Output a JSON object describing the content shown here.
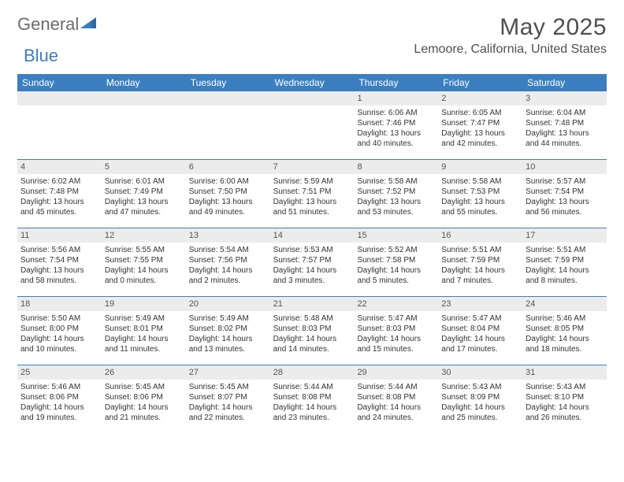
{
  "logo": {
    "word1": "General",
    "word2": "Blue"
  },
  "title": "May 2025",
  "location": "Lemoore, California, United States",
  "colors": {
    "header_bg": "#3b7fc0",
    "header_text": "#ffffff",
    "daynum_bg": "#ececec",
    "body_text": "#333333",
    "title_text": "#4f4f4f",
    "row_border": "#3b7fc0"
  },
  "type": "calendar",
  "day_names": [
    "Sunday",
    "Monday",
    "Tuesday",
    "Wednesday",
    "Thursday",
    "Friday",
    "Saturday"
  ],
  "weeks": [
    [
      null,
      null,
      null,
      null,
      {
        "n": "1",
        "sr": "Sunrise: 6:06 AM",
        "ss": "Sunset: 7:46 PM",
        "d1": "Daylight: 13 hours",
        "d2": "and 40 minutes."
      },
      {
        "n": "2",
        "sr": "Sunrise: 6:05 AM",
        "ss": "Sunset: 7:47 PM",
        "d1": "Daylight: 13 hours",
        "d2": "and 42 minutes."
      },
      {
        "n": "3",
        "sr": "Sunrise: 6:04 AM",
        "ss": "Sunset: 7:48 PM",
        "d1": "Daylight: 13 hours",
        "d2": "and 44 minutes."
      }
    ],
    [
      {
        "n": "4",
        "sr": "Sunrise: 6:02 AM",
        "ss": "Sunset: 7:48 PM",
        "d1": "Daylight: 13 hours",
        "d2": "and 45 minutes."
      },
      {
        "n": "5",
        "sr": "Sunrise: 6:01 AM",
        "ss": "Sunset: 7:49 PM",
        "d1": "Daylight: 13 hours",
        "d2": "and 47 minutes."
      },
      {
        "n": "6",
        "sr": "Sunrise: 6:00 AM",
        "ss": "Sunset: 7:50 PM",
        "d1": "Daylight: 13 hours",
        "d2": "and 49 minutes."
      },
      {
        "n": "7",
        "sr": "Sunrise: 5:59 AM",
        "ss": "Sunset: 7:51 PM",
        "d1": "Daylight: 13 hours",
        "d2": "and 51 minutes."
      },
      {
        "n": "8",
        "sr": "Sunrise: 5:58 AM",
        "ss": "Sunset: 7:52 PM",
        "d1": "Daylight: 13 hours",
        "d2": "and 53 minutes."
      },
      {
        "n": "9",
        "sr": "Sunrise: 5:58 AM",
        "ss": "Sunset: 7:53 PM",
        "d1": "Daylight: 13 hours",
        "d2": "and 55 minutes."
      },
      {
        "n": "10",
        "sr": "Sunrise: 5:57 AM",
        "ss": "Sunset: 7:54 PM",
        "d1": "Daylight: 13 hours",
        "d2": "and 56 minutes."
      }
    ],
    [
      {
        "n": "11",
        "sr": "Sunrise: 5:56 AM",
        "ss": "Sunset: 7:54 PM",
        "d1": "Daylight: 13 hours",
        "d2": "and 58 minutes."
      },
      {
        "n": "12",
        "sr": "Sunrise: 5:55 AM",
        "ss": "Sunset: 7:55 PM",
        "d1": "Daylight: 14 hours",
        "d2": "and 0 minutes."
      },
      {
        "n": "13",
        "sr": "Sunrise: 5:54 AM",
        "ss": "Sunset: 7:56 PM",
        "d1": "Daylight: 14 hours",
        "d2": "and 2 minutes."
      },
      {
        "n": "14",
        "sr": "Sunrise: 5:53 AM",
        "ss": "Sunset: 7:57 PM",
        "d1": "Daylight: 14 hours",
        "d2": "and 3 minutes."
      },
      {
        "n": "15",
        "sr": "Sunrise: 5:52 AM",
        "ss": "Sunset: 7:58 PM",
        "d1": "Daylight: 14 hours",
        "d2": "and 5 minutes."
      },
      {
        "n": "16",
        "sr": "Sunrise: 5:51 AM",
        "ss": "Sunset: 7:59 PM",
        "d1": "Daylight: 14 hours",
        "d2": "and 7 minutes."
      },
      {
        "n": "17",
        "sr": "Sunrise: 5:51 AM",
        "ss": "Sunset: 7:59 PM",
        "d1": "Daylight: 14 hours",
        "d2": "and 8 minutes."
      }
    ],
    [
      {
        "n": "18",
        "sr": "Sunrise: 5:50 AM",
        "ss": "Sunset: 8:00 PM",
        "d1": "Daylight: 14 hours",
        "d2": "and 10 minutes."
      },
      {
        "n": "19",
        "sr": "Sunrise: 5:49 AM",
        "ss": "Sunset: 8:01 PM",
        "d1": "Daylight: 14 hours",
        "d2": "and 11 minutes."
      },
      {
        "n": "20",
        "sr": "Sunrise: 5:49 AM",
        "ss": "Sunset: 8:02 PM",
        "d1": "Daylight: 14 hours",
        "d2": "and 13 minutes."
      },
      {
        "n": "21",
        "sr": "Sunrise: 5:48 AM",
        "ss": "Sunset: 8:03 PM",
        "d1": "Daylight: 14 hours",
        "d2": "and 14 minutes."
      },
      {
        "n": "22",
        "sr": "Sunrise: 5:47 AM",
        "ss": "Sunset: 8:03 PM",
        "d1": "Daylight: 14 hours",
        "d2": "and 15 minutes."
      },
      {
        "n": "23",
        "sr": "Sunrise: 5:47 AM",
        "ss": "Sunset: 8:04 PM",
        "d1": "Daylight: 14 hours",
        "d2": "and 17 minutes."
      },
      {
        "n": "24",
        "sr": "Sunrise: 5:46 AM",
        "ss": "Sunset: 8:05 PM",
        "d1": "Daylight: 14 hours",
        "d2": "and 18 minutes."
      }
    ],
    [
      {
        "n": "25",
        "sr": "Sunrise: 5:46 AM",
        "ss": "Sunset: 8:06 PM",
        "d1": "Daylight: 14 hours",
        "d2": "and 19 minutes."
      },
      {
        "n": "26",
        "sr": "Sunrise: 5:45 AM",
        "ss": "Sunset: 8:06 PM",
        "d1": "Daylight: 14 hours",
        "d2": "and 21 minutes."
      },
      {
        "n": "27",
        "sr": "Sunrise: 5:45 AM",
        "ss": "Sunset: 8:07 PM",
        "d1": "Daylight: 14 hours",
        "d2": "and 22 minutes."
      },
      {
        "n": "28",
        "sr": "Sunrise: 5:44 AM",
        "ss": "Sunset: 8:08 PM",
        "d1": "Daylight: 14 hours",
        "d2": "and 23 minutes."
      },
      {
        "n": "29",
        "sr": "Sunrise: 5:44 AM",
        "ss": "Sunset: 8:08 PM",
        "d1": "Daylight: 14 hours",
        "d2": "and 24 minutes."
      },
      {
        "n": "30",
        "sr": "Sunrise: 5:43 AM",
        "ss": "Sunset: 8:09 PM",
        "d1": "Daylight: 14 hours",
        "d2": "and 25 minutes."
      },
      {
        "n": "31",
        "sr": "Sunrise: 5:43 AM",
        "ss": "Sunset: 8:10 PM",
        "d1": "Daylight: 14 hours",
        "d2": "and 26 minutes."
      }
    ]
  ]
}
